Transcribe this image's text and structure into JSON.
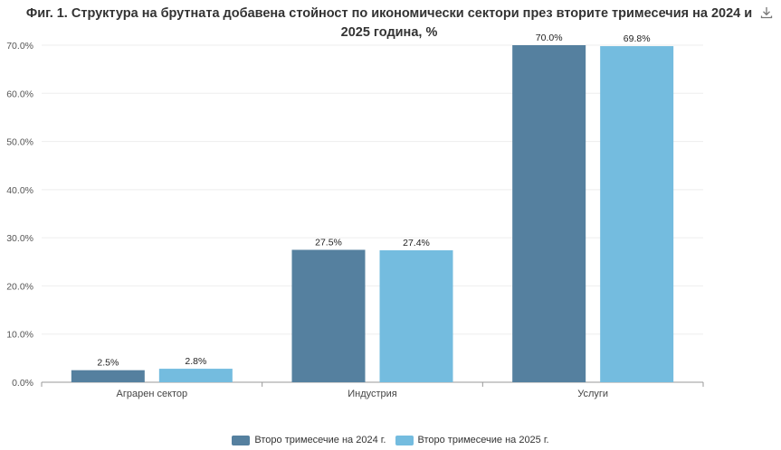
{
  "chart_data": {
    "type": "bar",
    "title": "Фиг. 1. Структура на брутната добавена стойност по икономически сектори през вторите тримесечия на 2024 и 2025 година, %",
    "categories": [
      "Аграрен сектор",
      "Индустрия",
      "Услуги"
    ],
    "series": [
      {
        "name": "Второ тримесечие на 2024 г.",
        "values": [
          2.5,
          27.5,
          70.0
        ],
        "labels": [
          "2.5%",
          "27.5%",
          "70.0%"
        ],
        "color": "#55809f"
      },
      {
        "name": "Второ тримесечие на 2025 г.",
        "values": [
          2.8,
          27.4,
          69.8
        ],
        "labels": [
          "2.8%",
          "27.4%",
          "69.8%"
        ],
        "color": "#74bcdf"
      }
    ],
    "ylim": [
      0,
      70
    ],
    "yticks": [
      0,
      10,
      20,
      30,
      40,
      50,
      60,
      70
    ],
    "ytick_labels": [
      "0.0%",
      "10.0%",
      "20.0%",
      "30.0%",
      "40.0%",
      "50.0%",
      "60.0%",
      "70.0%"
    ],
    "xlabel": "",
    "ylabel": "",
    "legend_position": "bottom"
  },
  "toolbar": {
    "download_icon": "download-icon"
  }
}
